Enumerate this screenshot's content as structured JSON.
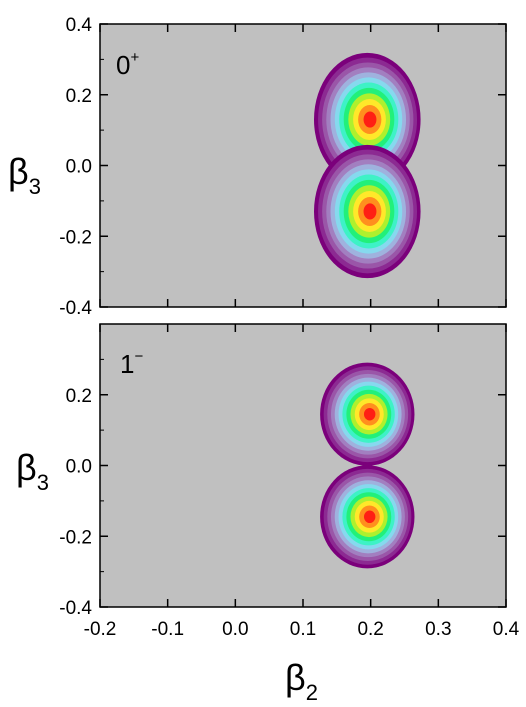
{
  "chart_data": [
    {
      "type": "heatmap",
      "panel": "top",
      "annotation": {
        "base": "0",
        "sup": "+"
      },
      "xlim": [
        -0.2,
        0.4
      ],
      "ylim": [
        -0.4,
        0.4
      ],
      "x_ticks": [],
      "y_ticks": [
        "0.4",
        "0.2",
        "0.0",
        "-0.2",
        "-0.4"
      ],
      "y_tick_values": [
        0.4,
        0.2,
        0.0,
        -0.2,
        -0.4
      ],
      "ylabel": {
        "base": "β",
        "sub": "3"
      },
      "background_color": "#c0c0c0",
      "levels": 12,
      "colormap": [
        "#7b007b",
        "#8c2a92",
        "#9a56a8",
        "#a27fc0",
        "#9fb2de",
        "#86d9ee",
        "#3ef2c6",
        "#22f07a",
        "#aef02e",
        "#ffe82a",
        "#ff8f1e",
        "#ff1f14"
      ],
      "peaks": [
        {
          "x": 0.195,
          "y": 0.13,
          "value": 1.0
        },
        {
          "x": 0.195,
          "y": -0.13,
          "value": 1.0
        }
      ],
      "outer_contour_extent": {
        "x": [
          0.08,
          0.255
        ],
        "y": [
          -0.285,
          0.285
        ]
      }
    },
    {
      "type": "heatmap",
      "panel": "bottom",
      "annotation": {
        "base": "1",
        "sup": "−"
      },
      "xlim": [
        -0.2,
        0.4
      ],
      "ylim": [
        -0.4,
        0.4
      ],
      "x_ticks": [
        "-0.2",
        "-0.1",
        "0.0",
        "0.1",
        "0.2",
        "0.3",
        "0.4"
      ],
      "x_tick_values": [
        -0.2,
        -0.1,
        0.0,
        0.1,
        0.2,
        0.3,
        0.4
      ],
      "y_ticks": [
        "0.2",
        "0.0",
        "-0.2",
        "-0.4"
      ],
      "y_tick_values": [
        0.2,
        0.0,
        -0.2,
        -0.4
      ],
      "xlabel": {
        "base": "β",
        "sub": "2"
      },
      "ylabel": {
        "base": "β",
        "sub": "3"
      },
      "background_color": "#c0c0c0",
      "levels": 12,
      "colormap": [
        "#7b007b",
        "#8c2a92",
        "#9a56a8",
        "#a27fc0",
        "#9fb2de",
        "#86d9ee",
        "#3ef2c6",
        "#22f07a",
        "#aef02e",
        "#ffe82a",
        "#ff8f1e",
        "#ff1f14"
      ],
      "peaks": [
        {
          "x": 0.195,
          "y": 0.145,
          "value": 1.0
        },
        {
          "x": 0.195,
          "y": -0.145,
          "value": 1.0
        }
      ],
      "outer_contour_extent": {
        "x": [
          0.095,
          0.25
        ],
        "y": [
          -0.265,
          0.265
        ]
      }
    }
  ]
}
